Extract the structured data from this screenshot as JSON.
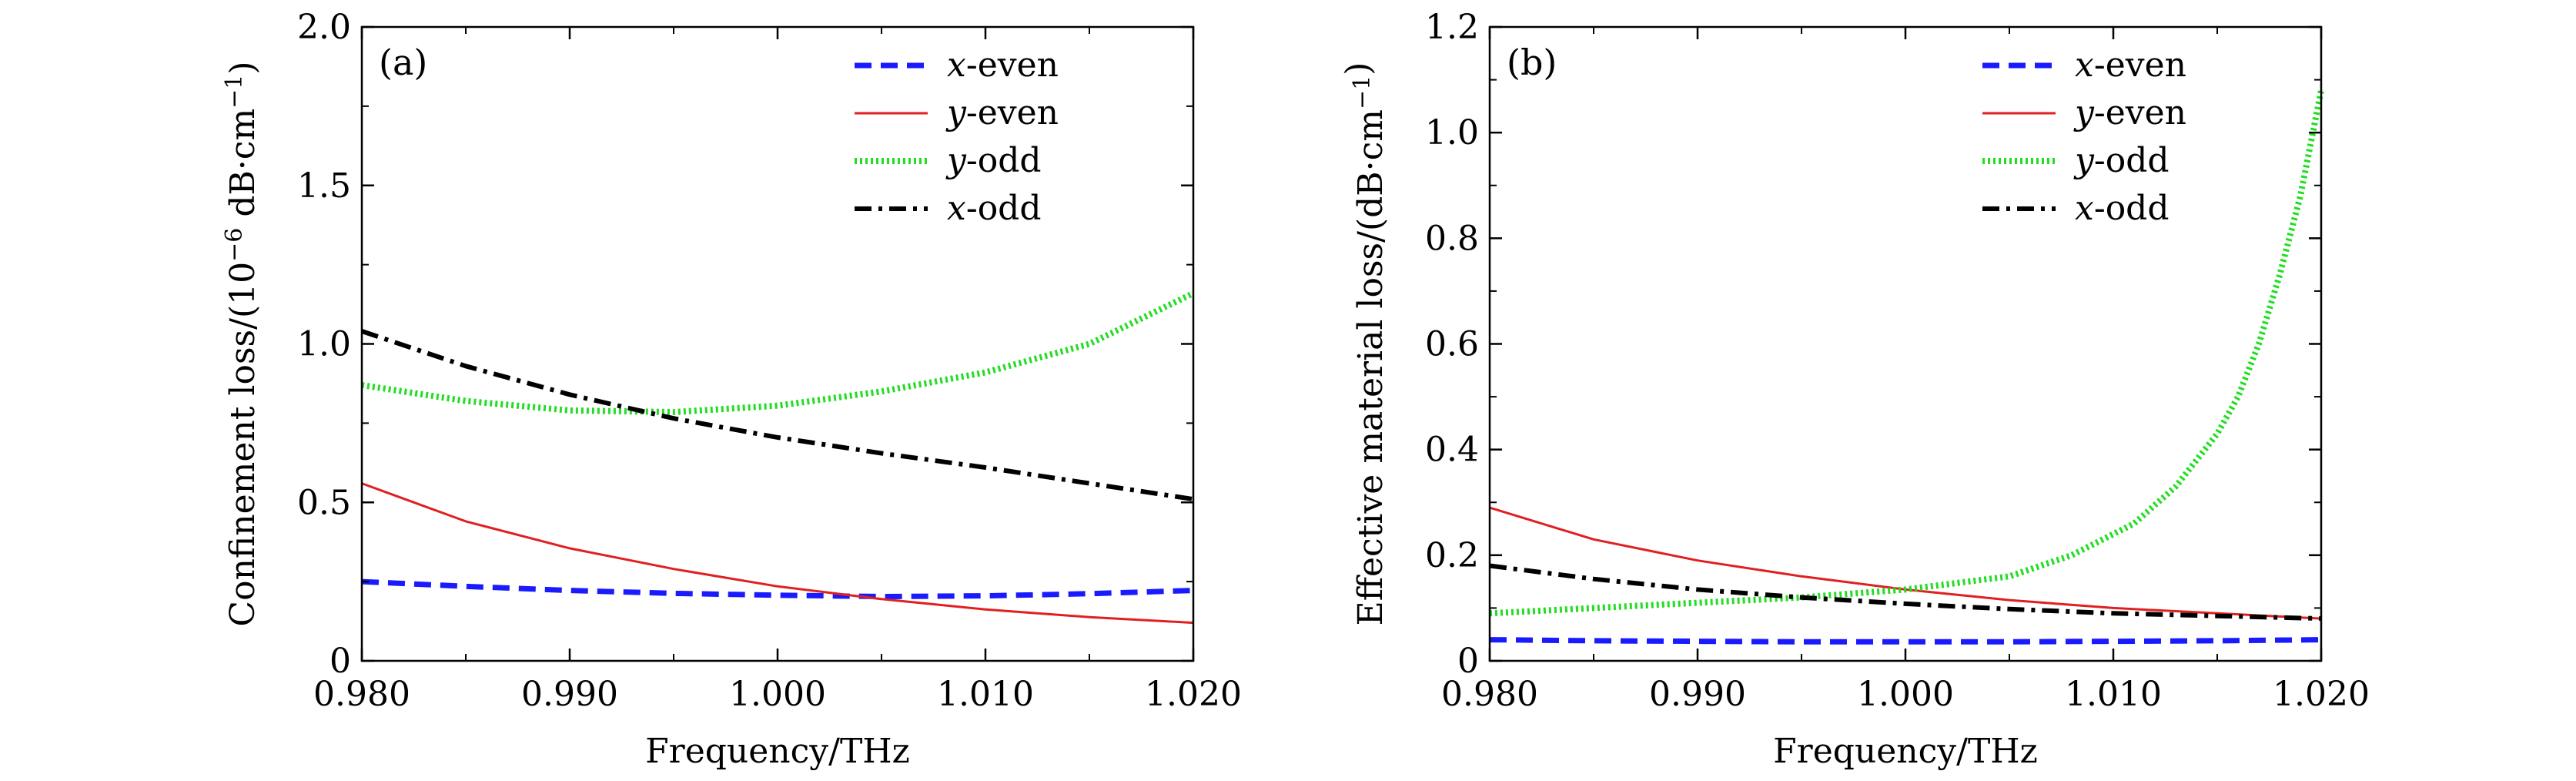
{
  "chart_data": [
    {
      "type": "line",
      "panel_label": "(a)",
      "xlabel": "Frequency/THz",
      "ylabel": {
        "prefix": "Confinement loss/(10",
        "sup": "−6",
        "mid": " dB·cm",
        "sup2": "−1",
        "suffix": ")"
      },
      "xlim": [
        0.98,
        1.02
      ],
      "ylim": [
        0,
        2.0
      ],
      "x_ticks": [
        0.98,
        0.99,
        1.0,
        1.01,
        1.02
      ],
      "x_tick_labels": [
        "0.980",
        "0.990",
        "1.000",
        "1.010",
        "1.020"
      ],
      "y_ticks": [
        0,
        0.5,
        1.0,
        1.5,
        2.0
      ],
      "y_tick_labels": [
        "0",
        "0.5",
        "1.0",
        "1.5",
        "2.0"
      ],
      "legend_position": "top-right",
      "series": [
        {
          "name": "x-even",
          "name_var": "x",
          "name_rest": "-even",
          "color": "#1a1aff",
          "style": "dashed",
          "x": [
            0.98,
            0.985,
            0.99,
            0.995,
            1.0,
            1.005,
            1.01,
            1.015,
            1.02
          ],
          "y": [
            0.25,
            0.235,
            0.222,
            0.213,
            0.207,
            0.203,
            0.205,
            0.212,
            0.222
          ]
        },
        {
          "name": "y-even",
          "name_var": "y",
          "name_rest": "-even",
          "color": "#e02020",
          "style": "solid",
          "x": [
            0.98,
            0.985,
            0.99,
            0.995,
            1.0,
            1.005,
            1.01,
            1.015,
            1.02
          ],
          "y": [
            0.56,
            0.44,
            0.355,
            0.29,
            0.235,
            0.195,
            0.162,
            0.138,
            0.12
          ]
        },
        {
          "name": "y-odd",
          "name_var": "y",
          "name_rest": "-odd",
          "color": "#22dd22",
          "style": "dotted",
          "x": [
            0.98,
            0.985,
            0.99,
            0.995,
            1.0,
            1.005,
            1.01,
            1.015,
            1.02
          ],
          "y": [
            0.87,
            0.82,
            0.79,
            0.785,
            0.805,
            0.85,
            0.91,
            1.0,
            1.16
          ]
        },
        {
          "name": "x-odd",
          "name_var": "x",
          "name_rest": "-odd",
          "color": "#000000",
          "style": "dashdot",
          "x": [
            0.98,
            0.985,
            0.99,
            0.995,
            1.0,
            1.005,
            1.01,
            1.015,
            1.02
          ],
          "y": [
            1.04,
            0.93,
            0.84,
            0.765,
            0.705,
            0.655,
            0.61,
            0.56,
            0.51
          ]
        }
      ]
    },
    {
      "type": "line",
      "panel_label": "(b)",
      "xlabel": "Frequency/THz",
      "ylabel": {
        "prefix": "Effective material loss/(dB·cm",
        "sup": "−1",
        "mid": "",
        "sup2": "",
        "suffix": ")"
      },
      "xlim": [
        0.98,
        1.02
      ],
      "ylim": [
        0,
        1.2
      ],
      "x_ticks": [
        0.98,
        0.99,
        1.0,
        1.01,
        1.02
      ],
      "x_tick_labels": [
        "0.980",
        "0.990",
        "1.000",
        "1.010",
        "1.020"
      ],
      "y_ticks": [
        0,
        0.2,
        0.4,
        0.6,
        0.8,
        1.0,
        1.2
      ],
      "y_tick_labels": [
        "0",
        "0.2",
        "0.4",
        "0.6",
        "0.8",
        "1.0",
        "1.2"
      ],
      "legend_position": "top-right",
      "series": [
        {
          "name": "x-even",
          "name_var": "x",
          "name_rest": "-even",
          "color": "#1a1aff",
          "style": "dashed",
          "x": [
            0.98,
            0.985,
            0.99,
            0.995,
            1.0,
            1.005,
            1.01,
            1.015,
            1.02
          ],
          "y": [
            0.04,
            0.038,
            0.037,
            0.036,
            0.036,
            0.036,
            0.037,
            0.038,
            0.04
          ]
        },
        {
          "name": "y-even",
          "name_var": "y",
          "name_rest": "-even",
          "color": "#e02020",
          "style": "solid",
          "x": [
            0.98,
            0.985,
            0.99,
            0.995,
            1.0,
            1.005,
            1.01,
            1.015,
            1.02
          ],
          "y": [
            0.29,
            0.23,
            0.19,
            0.16,
            0.135,
            0.115,
            0.1,
            0.09,
            0.08
          ]
        },
        {
          "name": "y-odd",
          "name_var": "y",
          "name_rest": "-odd",
          "color": "#22dd22",
          "style": "dotted",
          "x": [
            0.98,
            0.985,
            0.99,
            0.995,
            1.0,
            1.005,
            1.008,
            1.011,
            1.013,
            1.015,
            1.016,
            1.017,
            1.018,
            1.019,
            1.02
          ],
          "y": [
            0.09,
            0.1,
            0.11,
            0.12,
            0.135,
            0.16,
            0.2,
            0.26,
            0.33,
            0.43,
            0.5,
            0.6,
            0.73,
            0.88,
            1.08
          ]
        },
        {
          "name": "x-odd",
          "name_var": "x",
          "name_rest": "-odd",
          "color": "#000000",
          "style": "dashdot",
          "x": [
            0.98,
            0.985,
            0.99,
            0.995,
            1.0,
            1.005,
            1.01,
            1.015,
            1.02
          ],
          "y": [
            0.18,
            0.155,
            0.135,
            0.12,
            0.108,
            0.098,
            0.09,
            0.085,
            0.08
          ]
        }
      ]
    }
  ]
}
